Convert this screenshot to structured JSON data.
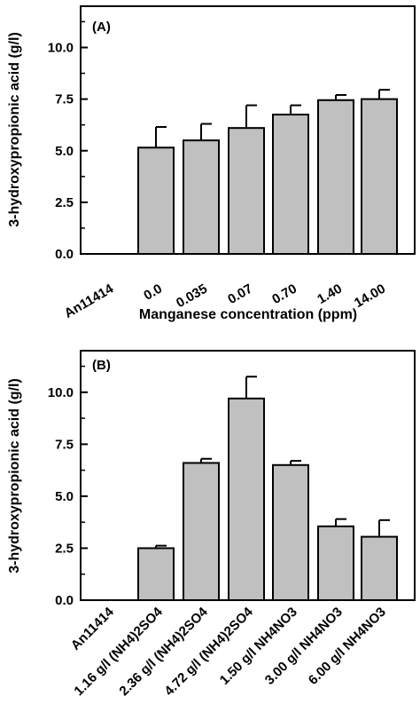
{
  "chart_data": [
    {
      "type": "bar",
      "panel_label": "(A)",
      "title": "",
      "xlabel": "Manganese concentration (ppm)",
      "ylabel": "3-hydroxypropionic acid (g/l)",
      "ylim": [
        0,
        12
      ],
      "yticks": [
        "0.0",
        "2.5",
        "5.0",
        "7.5",
        "10.0"
      ],
      "grid": false,
      "categories": [
        "An11414",
        "0.0",
        "0.035",
        "0.07",
        "0.70",
        "1.40",
        "14.00"
      ],
      "values": [
        null,
        5.15,
        5.5,
        6.1,
        6.75,
        7.45,
        7.5
      ],
      "errors": [
        null,
        1.0,
        0.8,
        1.1,
        0.45,
        0.25,
        0.45
      ],
      "bar_color": "#c0c0c0"
    },
    {
      "type": "bar",
      "panel_label": "(B)",
      "title": "",
      "xlabel": "",
      "ylabel": "3-hydroxypropionic acid (g/l)",
      "ylim": [
        0,
        12
      ],
      "yticks": [
        "0.0",
        "2.5",
        "5.0",
        "7.5",
        "10.0"
      ],
      "grid": false,
      "categories": [
        "An11414",
        "1.16 g/l (NH4)2SO4",
        "2.36 g/l (NH4)2SO4",
        "4.72 g/l (NH4)2SO4",
        "1.50 g/l NH4NO3",
        "3.00 g/l NH4NO3",
        "6.00 g/l NH4NO3"
      ],
      "values": [
        null,
        2.5,
        6.6,
        9.7,
        6.5,
        3.55,
        3.05
      ],
      "errors": [
        null,
        0.12,
        0.2,
        1.05,
        0.2,
        0.35,
        0.8
      ],
      "bar_color": "#c0c0c0"
    }
  ]
}
